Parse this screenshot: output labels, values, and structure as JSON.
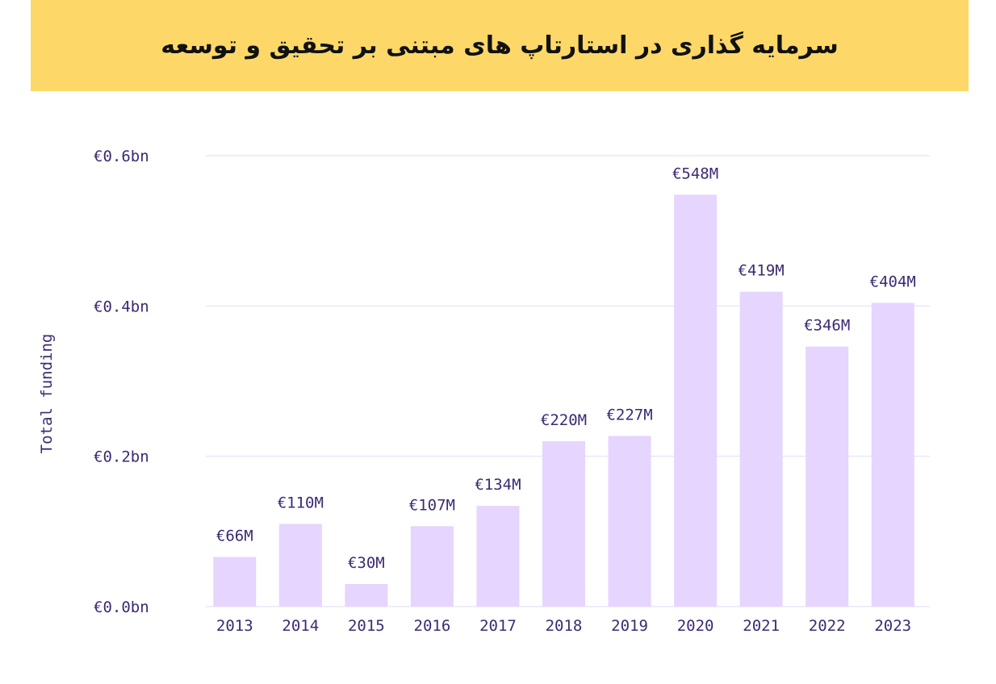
{
  "header": {
    "title": "سرمایه گذاری در استارتاپ های مبتنی بر تحقیق و توسعه"
  },
  "chart_data": {
    "type": "bar",
    "title": "سرمایه گذاری در استارتاپ های مبتنی بر تحقیق و توسعه",
    "ylabel": "Total funding",
    "xlabel": "",
    "ylim": [
      0,
      0.6
    ],
    "yticks": [
      0,
      0.2,
      0.4,
      0.6
    ],
    "ytick_labels": [
      "€0.0bn",
      "€0.2bn",
      "€0.4bn",
      "€0.6bn"
    ],
    "categories": [
      "2013",
      "2014",
      "2015",
      "2016",
      "2017",
      "2018",
      "2019",
      "2020",
      "2021",
      "2022",
      "2023"
    ],
    "values": [
      0.066,
      0.11,
      0.03,
      0.107,
      0.134,
      0.22,
      0.227,
      0.548,
      0.419,
      0.346,
      0.404
    ],
    "data_labels": [
      "€66M",
      "€110M",
      "€30M",
      "€107M",
      "€134M",
      "€220M",
      "€227M",
      "€548M",
      "€419M",
      "€346M",
      "€404M"
    ],
    "grid": true,
    "colors": {
      "bar": "#e5d5ff",
      "grid": "#ece6fa",
      "text": "#3d2a73",
      "banner": "#fdd868"
    }
  }
}
